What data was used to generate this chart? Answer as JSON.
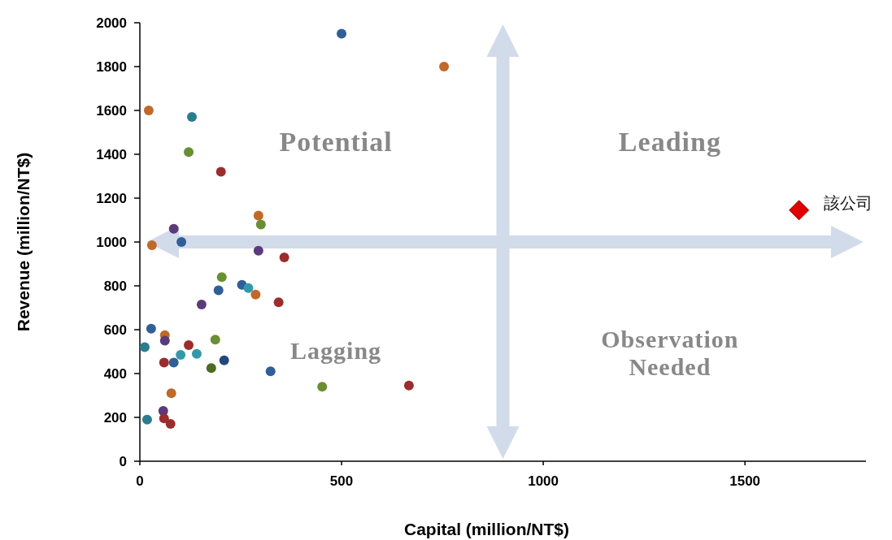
{
  "chart_data": {
    "type": "scatter",
    "xlabel": "Capital (million/NT$)",
    "ylabel": "Revenue (million/NT$)",
    "xlim": [
      0,
      1800
    ],
    "ylim": [
      0,
      2000
    ],
    "xticks": [
      0,
      500,
      1000,
      1500
    ],
    "yticks": [
      0,
      200,
      400,
      600,
      800,
      1000,
      1200,
      1400,
      1600,
      1800,
      2000
    ],
    "grid": false,
    "ref_lines": [
      {
        "axis": "y",
        "value": 1000,
        "color": "#d2dbea"
      },
      {
        "axis": "x",
        "value": 900,
        "color": "#d2dbea"
      }
    ],
    "annotations": [
      "Potential",
      "Leading",
      "Lagging",
      "Observation Needed"
    ],
    "series": [
      {
        "marker": "circle",
        "x": [
          500,
          754,
          22,
          129,
          121,
          201,
          294,
          300,
          84,
          103,
          30,
          294,
          358,
          203,
          195,
          253,
          269,
          287,
          153,
          344,
          28,
          62,
          62,
          12,
          121,
          187,
          101,
          141,
          60,
          84,
          209,
          177,
          324,
          78,
          58,
          18,
          60,
          76,
          452,
          667
        ],
        "values": [
          1950,
          1800,
          1600,
          1570,
          1410,
          1320,
          1120,
          1080,
          1060,
          1000,
          985,
          960,
          930,
          840,
          780,
          805,
          790,
          760,
          715,
          725,
          605,
          575,
          550,
          520,
          530,
          555,
          485,
          490,
          450,
          450,
          460,
          425,
          410,
          310,
          230,
          190,
          195,
          170,
          340,
          345
        ],
        "colors": [
          "#2f5f97",
          "#c0692a",
          "#c0692a",
          "#2b7d8e",
          "#6a8f32",
          "#9b2d2d",
          "#c0692a",
          "#6a8f32",
          "#5b3b7a",
          "#2f5f97",
          "#c0692a",
          "#5b3b7a",
          "#9b2d2d",
          "#6a8f32",
          "#2f5f97",
          "#2f5f97",
          "#3399aa",
          "#c0692a",
          "#5b3b7a",
          "#9b2d2d",
          "#2f5f97",
          "#c0692a",
          "#5b3b7a",
          "#2b7d8e",
          "#9b2d2d",
          "#6a8f32",
          "#3399aa",
          "#3399aa",
          "#9b2d2d",
          "#2f5f97",
          "#23497a",
          "#4f6b22",
          "#2f5f97",
          "#c0692a",
          "#5b3b7a",
          "#2b7d8e",
          "#9b2d2d",
          "#9b2d2d",
          "#6a8f32",
          "#9b2d2d"
        ]
      },
      {
        "marker": "diamond",
        "name": "該公司",
        "color": "#e00000",
        "x": [
          1634
        ],
        "values": [
          1145
        ]
      }
    ]
  }
}
